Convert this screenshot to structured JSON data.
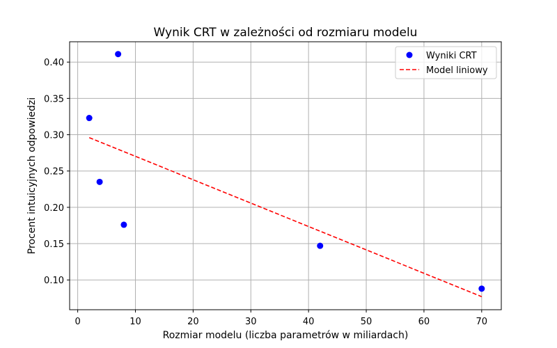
{
  "chart_data": {
    "type": "scatter",
    "title": "Wynik CRT w zależności od rozmiaru modelu",
    "xlabel": "Rozmiar modelu (liczba parametrów w miliardach)",
    "ylabel": "Procent intuicyjnych odpowiedzi",
    "xlim": [
      -1.4,
      73.4
    ],
    "ylim": [
      0.059,
      0.428
    ],
    "x_ticks": [
      0,
      10,
      20,
      30,
      40,
      50,
      60,
      70
    ],
    "y_ticks": [
      0.1,
      0.15,
      0.2,
      0.25,
      0.3,
      0.35,
      0.4
    ],
    "x_tick_labels": [
      "0",
      "10",
      "20",
      "30",
      "40",
      "50",
      "60",
      "70"
    ],
    "y_tick_labels": [
      "0.10",
      "0.15",
      "0.20",
      "0.25",
      "0.30",
      "0.35",
      "0.40"
    ],
    "grid": true,
    "legend_position": "top-right",
    "series": [
      {
        "name": "Wyniki CRT",
        "kind": "scatter",
        "color": "#0000ff",
        "points": [
          {
            "x": 2,
            "y": 0.323
          },
          {
            "x": 3.8,
            "y": 0.235
          },
          {
            "x": 7,
            "y": 0.411
          },
          {
            "x": 8,
            "y": 0.176
          },
          {
            "x": 42,
            "y": 0.147
          },
          {
            "x": 70,
            "y": 0.088
          }
        ]
      },
      {
        "name": "Model liniowy",
        "kind": "line",
        "style": "dashed",
        "color": "#ff0000",
        "points": [
          {
            "x": 2,
            "y": 0.296
          },
          {
            "x": 70,
            "y": 0.077
          }
        ]
      }
    ]
  }
}
